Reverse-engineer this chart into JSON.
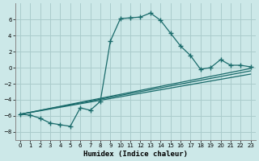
{
  "xlabel": "Humidex (Indice chaleur)",
  "background_color": "#cce8e8",
  "grid_color": "#aacccc",
  "line_color": "#1a6b6b",
  "xlim": [
    -0.5,
    23.5
  ],
  "ylim": [
    -9,
    8
  ],
  "yticks": [
    -8,
    -6,
    -4,
    -2,
    0,
    2,
    4,
    6
  ],
  "xticks": [
    0,
    1,
    2,
    3,
    4,
    5,
    6,
    7,
    8,
    9,
    10,
    11,
    12,
    13,
    14,
    15,
    16,
    17,
    18,
    19,
    20,
    21,
    22,
    23
  ],
  "main_series": {
    "x": [
      0,
      1,
      2,
      3,
      4,
      5,
      6,
      7,
      8,
      9,
      10,
      11,
      12,
      13,
      14,
      15,
      16,
      17,
      18,
      19,
      20,
      21,
      22,
      23
    ],
    "y": [
      -5.8,
      -5.9,
      -6.3,
      -6.9,
      -7.1,
      -7.3,
      -5.0,
      -5.3,
      -4.2,
      3.3,
      6.1,
      6.2,
      6.3,
      6.8,
      5.9,
      4.3,
      2.7,
      1.5,
      -0.2,
      0.0,
      1.0,
      0.3,
      0.3,
      0.1
    ]
  },
  "trend_lines": [
    {
      "x": [
        0,
        23
      ],
      "y": [
        -5.8,
        -0.1
      ]
    },
    {
      "x": [
        0,
        23
      ],
      "y": [
        -5.8,
        -0.4
      ]
    },
    {
      "x": [
        0,
        23
      ],
      "y": [
        -5.8,
        -0.8
      ]
    }
  ]
}
